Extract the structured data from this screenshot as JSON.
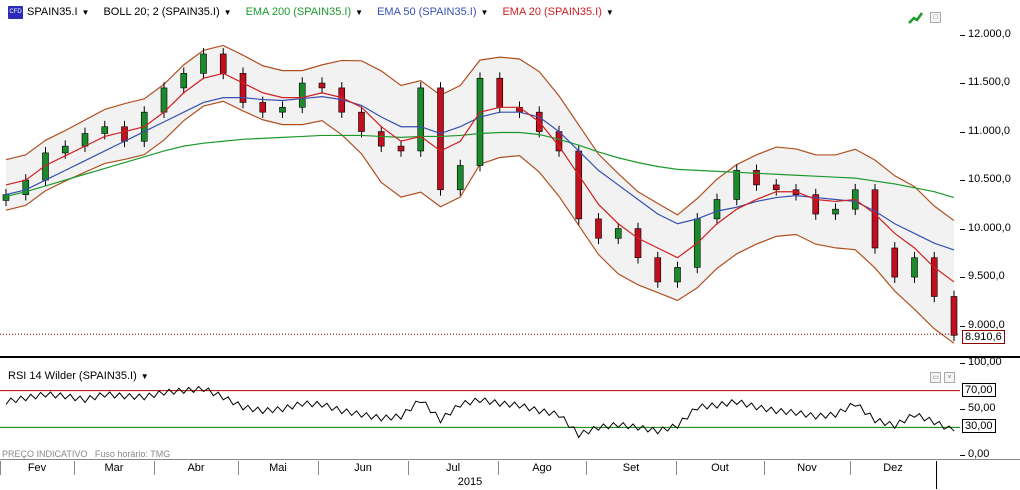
{
  "legend": {
    "symbol": "SPAIN35.I",
    "boll": "BOLL 20; 2 (SPAIN35.I)",
    "ema200": "EMA 200 (SPAIN35.I)",
    "ema50": "EMA 50 (SPAIN35.I)",
    "ema20": "EMA 20 (SPAIN35.I)"
  },
  "rsi_legend": "RSI 14 Wilder (SPAIN35.I)",
  "footer": {
    "left": "PREÇO INDICATIVO",
    "tz": "Fuso horário: TMG"
  },
  "last_price": "8.910,6",
  "price_ticks": [
    "12.000,0",
    "11.500,0",
    "11.000,0",
    "10.500,0",
    "10.000,0",
    "9.500,0",
    "9.000,0"
  ],
  "rsi_ticks": [
    "100,00",
    "50,00",
    "0,00"
  ],
  "rsi_levels": [
    "70,00",
    "30,00"
  ],
  "months": [
    "Fev",
    "Mar",
    "Abr",
    "Mai",
    "Jun",
    "Jul",
    "Ago",
    "Set",
    "Out",
    "Nov",
    "Dez"
  ],
  "year": "2015",
  "colors": {
    "ema200": "#1a9a2a",
    "ema50": "#3650b0",
    "ema20": "#d02020",
    "boll": "#b05020",
    "bull": "#1a8a2a",
    "bear": "#c01020",
    "rsi": "#000000",
    "rsi_high": "#b00000",
    "rsi_low": "#008000"
  },
  "chart_data": [
    {
      "type": "line",
      "title": "",
      "xlabel": "",
      "ylabel": "",
      "ylim": [
        8800,
        12150
      ],
      "x": [
        "Jan-28",
        "Feb-03",
        "Feb-10",
        "Feb-17",
        "Feb-24",
        "Mar-03",
        "Mar-10",
        "Mar-17",
        "Mar-24",
        "Mar-31",
        "Apr-07",
        "Apr-14",
        "Apr-21",
        "Apr-28",
        "May-05",
        "May-12",
        "May-19",
        "May-26",
        "Jun-02",
        "Jun-09",
        "Jun-16",
        "Jun-23",
        "Jun-30",
        "Jul-07",
        "Jul-14",
        "Jul-21",
        "Jul-28",
        "Aug-04",
        "Aug-11",
        "Aug-18",
        "Aug-25",
        "Sep-01",
        "Sep-08",
        "Sep-15",
        "Sep-22",
        "Sep-29",
        "Oct-06",
        "Oct-13",
        "Oct-20",
        "Oct-27",
        "Nov-03",
        "Nov-10",
        "Nov-17",
        "Nov-24",
        "Dec-01",
        "Dec-08",
        "Dec-15",
        "Dec-22",
        "Dec-29"
      ],
      "series": [
        {
          "name": "SPAIN35.I",
          "values": [
            10350,
            10500,
            10780,
            10850,
            10980,
            11050,
            10900,
            11200,
            11450,
            11600,
            11800,
            11600,
            11300,
            11200,
            11250,
            11500,
            11450,
            11200,
            11000,
            10850,
            10800,
            11450,
            10400,
            10650,
            11550,
            11250,
            11200,
            11000,
            10800,
            10100,
            9900,
            10000,
            9700,
            9450,
            9600,
            10100,
            10300,
            10600,
            10450,
            10400,
            10350,
            10150,
            10200,
            10400,
            9800,
            9500,
            9700,
            9300,
            8900
          ]
        },
        {
          "name": "EMA 20 (SPAIN35.I)",
          "values": [
            10450,
            10500,
            10650,
            10750,
            10850,
            10950,
            11000,
            11050,
            11200,
            11400,
            11550,
            11600,
            11500,
            11400,
            11350,
            11350,
            11400,
            11350,
            11250,
            11050,
            10900,
            10950,
            10800,
            10900,
            11200,
            11250,
            11250,
            11100,
            10850,
            10550,
            10250,
            10050,
            9900,
            9800,
            9700,
            9850,
            10050,
            10200,
            10300,
            10380,
            10380,
            10300,
            10280,
            10300,
            10150,
            9950,
            9800,
            9600,
            9450
          ]
        },
        {
          "name": "EMA 50 (SPAIN35.I)",
          "values": [
            10350,
            10400,
            10500,
            10600,
            10700,
            10800,
            10900,
            11000,
            11100,
            11200,
            11300,
            11350,
            11350,
            11330,
            11320,
            11340,
            11360,
            11330,
            11270,
            11150,
            11050,
            11050,
            10980,
            11050,
            11150,
            11200,
            11200,
            11150,
            11000,
            10800,
            10600,
            10450,
            10300,
            10150,
            10050,
            10100,
            10180,
            10220,
            10280,
            10320,
            10340,
            10320,
            10300,
            10280,
            10180,
            10050,
            9950,
            9850,
            9780
          ]
        },
        {
          "name": "EMA 200 (SPAIN35.I)",
          "values": [
            10330,
            10380,
            10440,
            10500,
            10560,
            10620,
            10680,
            10740,
            10800,
            10850,
            10880,
            10900,
            10920,
            10930,
            10940,
            10950,
            10960,
            10960,
            10960,
            10950,
            10940,
            10950,
            10950,
            10960,
            10980,
            10990,
            10990,
            10970,
            10920,
            10860,
            10790,
            10730,
            10680,
            10640,
            10610,
            10600,
            10590,
            10580,
            10570,
            10560,
            10550,
            10540,
            10530,
            10520,
            10490,
            10460,
            10420,
            10380,
            10320
          ]
        }
      ]
    },
    {
      "type": "line",
      "title": "",
      "ylim": [
        0,
        100
      ],
      "series": [
        {
          "name": "RSI 14 Wilder (SPAIN35.I)",
          "values": [
            58,
            62,
            66,
            64,
            60,
            66,
            64,
            63,
            68,
            70,
            72,
            63,
            52,
            48,
            50,
            56,
            55,
            48,
            44,
            40,
            42,
            60,
            38,
            55,
            60,
            56,
            54,
            48,
            44,
            22,
            30,
            33,
            30,
            26,
            32,
            52,
            54,
            58,
            52,
            48,
            46,
            42,
            44,
            56,
            38,
            32,
            44,
            36,
            26
          ]
        }
      ]
    }
  ]
}
